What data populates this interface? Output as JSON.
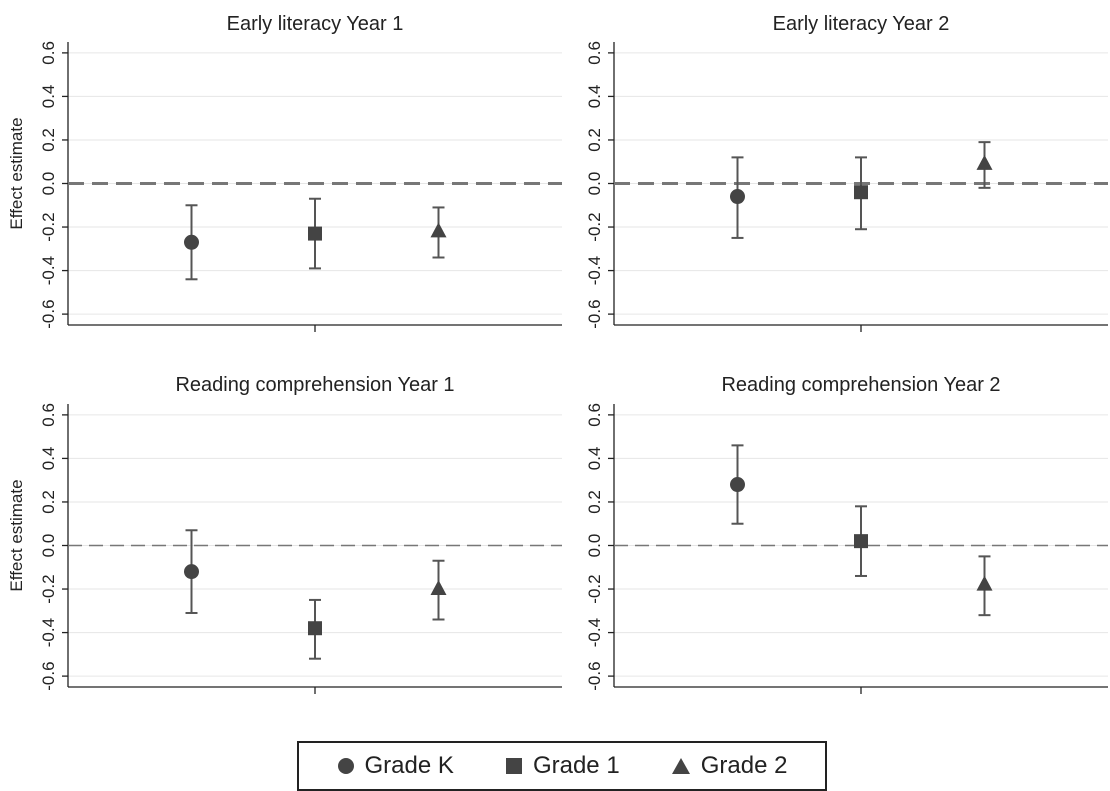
{
  "chart_data": [
    {
      "type": "scatter",
      "title": "Early literacy Year 1",
      "ylabel": "Effect estimate",
      "ylim": [
        -0.65,
        0.65
      ],
      "yticks": [
        "0.6",
        "0.4",
        "0.2",
        "0.0",
        "-0.2",
        "-0.4",
        "-0.6"
      ],
      "reference_line": 0.0,
      "reference_line_style": "dashed",
      "series": [
        {
          "name": "Grade K",
          "marker": "circle",
          "estimate": -0.27,
          "ci": [
            -0.44,
            -0.1
          ]
        },
        {
          "name": "Grade 1",
          "marker": "square",
          "estimate": -0.23,
          "ci": [
            -0.39,
            -0.07
          ]
        },
        {
          "name": "Grade 2",
          "marker": "triangle",
          "estimate": -0.22,
          "ci": [
            -0.34,
            -0.11
          ]
        }
      ]
    },
    {
      "type": "scatter",
      "title": "Early literacy Year 2",
      "ylabel": "",
      "ylim": [
        -0.65,
        0.65
      ],
      "yticks": [
        "0.6",
        "0.4",
        "0.2",
        "0.0",
        "-0.2",
        "-0.4",
        "-0.6"
      ],
      "reference_line": 0.0,
      "reference_line_style": "dashed",
      "series": [
        {
          "name": "Grade K",
          "marker": "circle",
          "estimate": -0.06,
          "ci": [
            -0.25,
            0.12
          ]
        },
        {
          "name": "Grade 1",
          "marker": "square",
          "estimate": -0.04,
          "ci": [
            -0.21,
            0.12
          ]
        },
        {
          "name": "Grade 2",
          "marker": "triangle",
          "estimate": 0.09,
          "ci": [
            -0.02,
            0.19
          ]
        }
      ]
    },
    {
      "type": "scatter",
      "title": "Reading comprehension Year 1",
      "ylabel": "Effect estimate",
      "ylim": [
        -0.65,
        0.65
      ],
      "yticks": [
        "0.6",
        "0.4",
        "0.2",
        "0.0",
        "-0.2",
        "-0.4",
        "-0.6"
      ],
      "reference_line": 0.0,
      "reference_line_style": "dashed",
      "series": [
        {
          "name": "Grade K",
          "marker": "circle",
          "estimate": -0.12,
          "ci": [
            -0.31,
            0.07
          ]
        },
        {
          "name": "Grade 1",
          "marker": "square",
          "estimate": -0.38,
          "ci": [
            -0.52,
            -0.25
          ]
        },
        {
          "name": "Grade 2",
          "marker": "triangle",
          "estimate": -0.2,
          "ci": [
            -0.34,
            -0.07
          ]
        }
      ]
    },
    {
      "type": "scatter",
      "title": "Reading comprehension Year 2",
      "ylabel": "",
      "ylim": [
        -0.65,
        0.65
      ],
      "yticks": [
        "0.6",
        "0.4",
        "0.2",
        "0.0",
        "-0.2",
        "-0.4",
        "-0.6"
      ],
      "reference_line": 0.0,
      "reference_line_style": "dashed",
      "series": [
        {
          "name": "Grade K",
          "marker": "circle",
          "estimate": 0.28,
          "ci": [
            0.1,
            0.46
          ]
        },
        {
          "name": "Grade 1",
          "marker": "square",
          "estimate": 0.02,
          "ci": [
            -0.14,
            0.18
          ]
        },
        {
          "name": "Grade 2",
          "marker": "triangle",
          "estimate": -0.18,
          "ci": [
            -0.32,
            -0.05
          ]
        }
      ]
    }
  ],
  "legend": {
    "placement": "bottom-center",
    "items": [
      {
        "label": "Grade K",
        "icon": "circle-marker-icon"
      },
      {
        "label": "Grade 1",
        "icon": "square-marker-icon"
      },
      {
        "label": "Grade 2",
        "icon": "triangle-marker-icon"
      }
    ]
  },
  "colors": {
    "marker": "#444444",
    "errbar": "#555555",
    "grid": "#e6e6e6",
    "refline": "#777777",
    "axis": "#222222"
  }
}
